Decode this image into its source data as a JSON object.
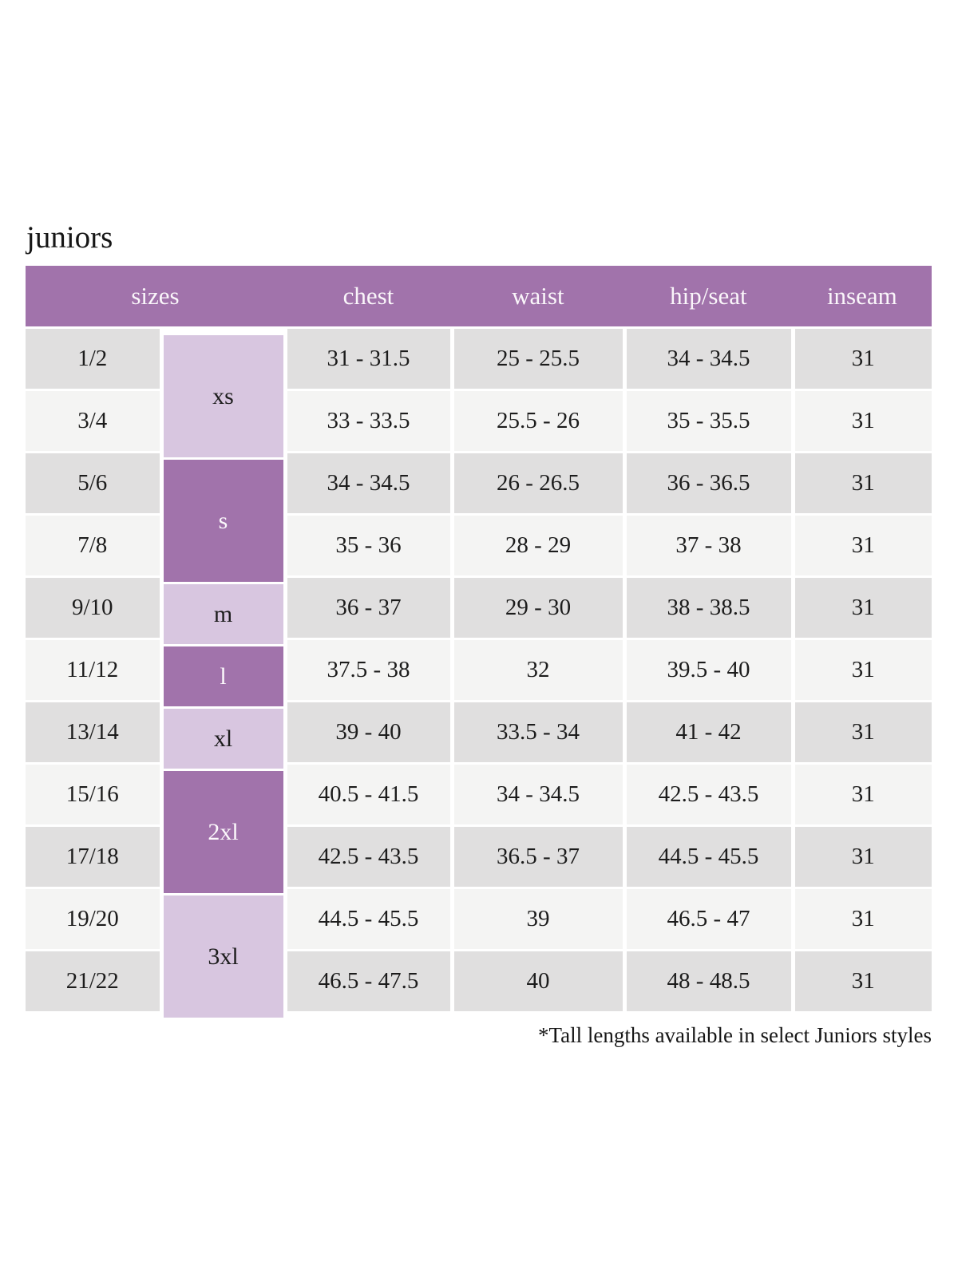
{
  "page": {
    "title": "juniors",
    "footnote": "*Tall lengths available in select Juniors styles"
  },
  "colors": {
    "header_purple": "#a173ab",
    "size_lavender": "#d8c6e0",
    "row_gray_dark": "#e0dfdf",
    "row_gray_light": "#f4f4f3",
    "header_text": "#faf6fa",
    "body_text": "#1c1c1c"
  },
  "table": {
    "headers": [
      "sizes",
      "chest",
      "waist",
      "hip/seat",
      "inseam"
    ],
    "size_groups": [
      {
        "label": "xs",
        "rows": "1/2, 3/4"
      },
      {
        "label": "s",
        "rows": "5/6, 7/8"
      },
      {
        "label": "m",
        "rows": "9/10"
      },
      {
        "label": "l",
        "rows": "11/12"
      },
      {
        "label": "xl",
        "rows": "13/14"
      },
      {
        "label": "2xl",
        "rows": "15/16, 17/18"
      },
      {
        "label": "3xl",
        "rows": "19/20, 21/22"
      }
    ],
    "rows": [
      {
        "size": "1/2",
        "chest": "31 - 31.5",
        "waist": "25 - 25.5",
        "hip_seat": "34 - 34.5",
        "inseam": "31"
      },
      {
        "size": "3/4",
        "chest": "33 - 33.5",
        "waist": "25.5 - 26",
        "hip_seat": "35 - 35.5",
        "inseam": "31"
      },
      {
        "size": "5/6",
        "chest": "34 - 34.5",
        "waist": "26 - 26.5",
        "hip_seat": "36 - 36.5",
        "inseam": "31"
      },
      {
        "size": "7/8",
        "chest": "35 - 36",
        "waist": "28 - 29",
        "hip_seat": "37 - 38",
        "inseam": "31"
      },
      {
        "size": "9/10",
        "chest": "36 - 37",
        "waist": "29 - 30",
        "hip_seat": "38 - 38.5",
        "inseam": "31"
      },
      {
        "size": "11/12",
        "chest": "37.5 - 38",
        "waist": "32",
        "hip_seat": "39.5 - 40",
        "inseam": "31"
      },
      {
        "size": "13/14",
        "chest": "39 - 40",
        "waist": "33.5 - 34",
        "hip_seat": "41 - 42",
        "inseam": "31"
      },
      {
        "size": "15/16",
        "chest": "40.5 - 41.5",
        "waist": "34 - 34.5",
        "hip_seat": "42.5 - 43.5",
        "inseam": "31"
      },
      {
        "size": "17/18",
        "chest": "42.5 - 43.5",
        "waist": "36.5 - 37",
        "hip_seat": "44.5 - 45.5",
        "inseam": "31"
      },
      {
        "size": "19/20",
        "chest": "44.5 - 45.5",
        "waist": "39",
        "hip_seat": "46.5 - 47",
        "inseam": "31"
      },
      {
        "size": "21/22",
        "chest": "46.5 - 47.5",
        "waist": "40",
        "hip_seat": "48 - 48.5",
        "inseam": "31"
      }
    ]
  }
}
